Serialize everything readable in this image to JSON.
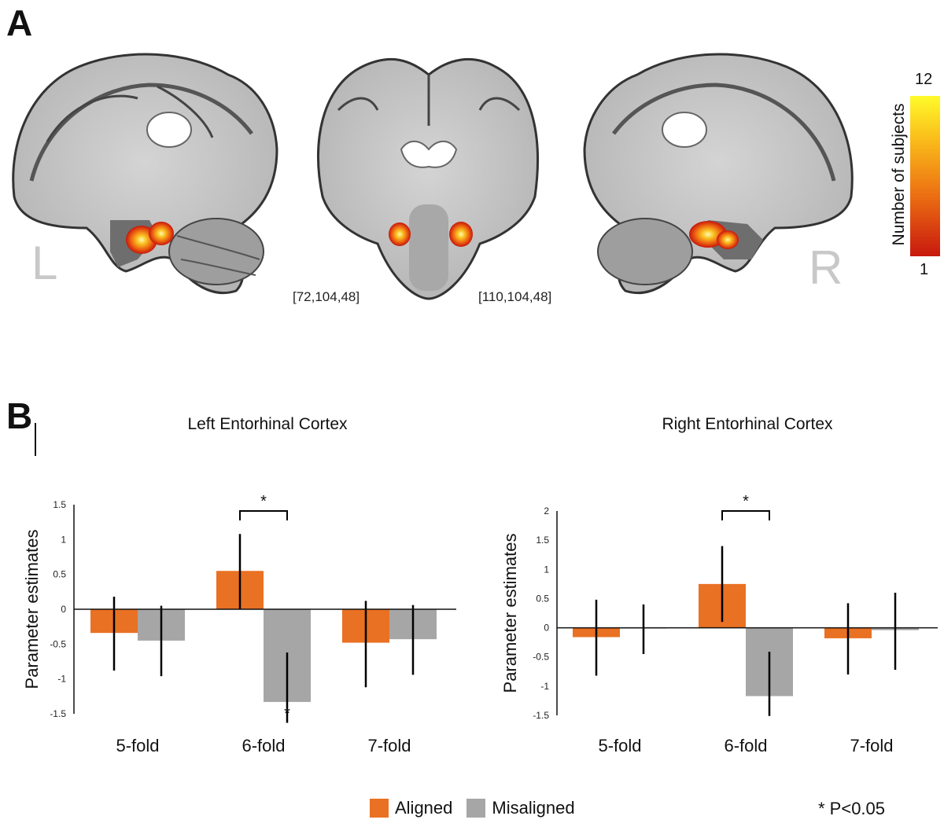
{
  "panel_a": {
    "letter": "A",
    "left_marker": "L",
    "right_marker": "R",
    "coord_left": "[72,104,48]",
    "coord_right": "[110,104,48]",
    "colorbar": {
      "max": "12",
      "min": "1",
      "label": "Number of subjects",
      "colors": [
        "#fffb2a",
        "#f9b619",
        "#ec6f13",
        "#c8180e"
      ]
    }
  },
  "panel_b": {
    "letter": "B"
  },
  "legend": {
    "aligned": "Aligned",
    "misaligned": "Misaligned",
    "significance": "* P<0.05"
  },
  "colors": {
    "aligned": "#e97123",
    "misaligned": "#a6a6a6"
  },
  "chart_data": [
    {
      "type": "bar",
      "title": "Left Entorhinal Cortex",
      "ylabel": "Parameter estimates",
      "categories": [
        "5-fold",
        "6-fold",
        "7-fold"
      ],
      "ylim": [
        -1.5,
        1.5
      ],
      "yticks": [
        "1.5",
        "1",
        "0.5",
        "0",
        "-0.5",
        "-1",
        "-1.5"
      ],
      "series": [
        {
          "name": "Aligned",
          "values": [
            -0.34,
            0.55,
            -0.48
          ],
          "err_low": [
            -0.88,
            0.0,
            -1.12
          ],
          "err_high": [
            0.18,
            1.08,
            0.12
          ]
        },
        {
          "name": "Misaligned",
          "values": [
            -0.45,
            -1.33,
            -0.43
          ],
          "err_low": [
            -0.96,
            -1.63,
            -0.94
          ],
          "err_high": [
            0.05,
            -0.62,
            0.06
          ]
        }
      ],
      "bracket": {
        "category": "6-fold",
        "label": "*"
      },
      "marker_below": {
        "category": "6-fold",
        "label": "*"
      }
    },
    {
      "type": "bar",
      "title": "Right Entorhinal Cortex",
      "ylabel": "Parameter estimates",
      "categories": [
        "5-fold",
        "6-fold",
        "7-fold"
      ],
      "ylim": [
        -1.5,
        2
      ],
      "yticks": [
        "2",
        "1.5",
        "1",
        "0.5",
        "0",
        "-0.5",
        "-1",
        "-1.5"
      ],
      "series": [
        {
          "name": "Aligned",
          "values": [
            -0.16,
            0.75,
            -0.18
          ],
          "err_low": [
            -0.82,
            0.1,
            -0.8
          ],
          "err_high": [
            0.48,
            1.4,
            0.42
          ]
        },
        {
          "name": "Misaligned",
          "values": [
            0.0,
            -1.17,
            -0.04
          ],
          "err_low": [
            -0.45,
            -1.51,
            -0.72
          ],
          "err_high": [
            0.4,
            -0.41,
            0.6
          ]
        }
      ],
      "bracket": {
        "category": "6-fold",
        "label": "*"
      }
    }
  ]
}
